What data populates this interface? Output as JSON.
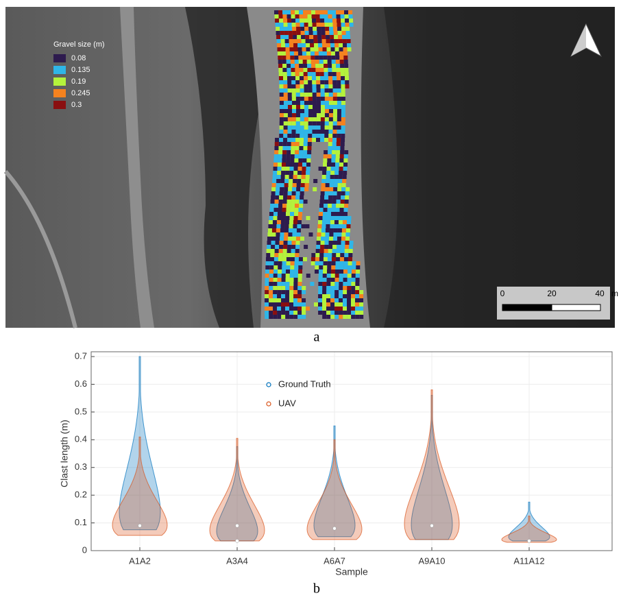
{
  "panel_a": {
    "caption": "a",
    "legend": {
      "title": "Gravel size (m)",
      "items": [
        {
          "label": "0.08",
          "color": "#2d1b4e"
        },
        {
          "label": "0.135",
          "color": "#2fb6e8"
        },
        {
          "label": "0.19",
          "color": "#b4f23c"
        },
        {
          "label": "0.245",
          "color": "#f5821f"
        },
        {
          "label": "0.3",
          "color": "#8a0f10"
        }
      ]
    },
    "scale_bar": {
      "labels": [
        "0",
        "20",
        "40"
      ],
      "unit": "m"
    }
  },
  "chart_data": {
    "type": "violin",
    "caption": "b",
    "categories": [
      "A1A2",
      "A3A4",
      "A6A7",
      "A9A10",
      "A11A12"
    ],
    "series": [
      {
        "name": "Ground Truth",
        "color": "#0072bd",
        "min": [
          0.075,
          0.035,
          0.05,
          0.04,
          0.035
        ],
        "max": [
          0.7,
          0.375,
          0.45,
          0.56,
          0.175
        ],
        "median": [
          0.09,
          0.09,
          0.08,
          0.09,
          0.035
        ]
      },
      {
        "name": "UAV",
        "color": "#d95319",
        "min": [
          0.055,
          0.035,
          0.04,
          0.04,
          0.03
        ],
        "max": [
          0.41,
          0.405,
          0.4,
          0.58,
          0.125
        ],
        "median": [
          0.09,
          0.035,
          0.08,
          0.09,
          0.035
        ]
      }
    ],
    "ylim": [
      0,
      0.7
    ],
    "yticks": [
      0,
      0.1,
      0.2,
      0.3,
      0.4,
      0.5,
      0.6,
      0.7
    ],
    "xlabel": "Sample",
    "ylabel": "Clast length (m)",
    "grid": true,
    "legend": "top"
  }
}
